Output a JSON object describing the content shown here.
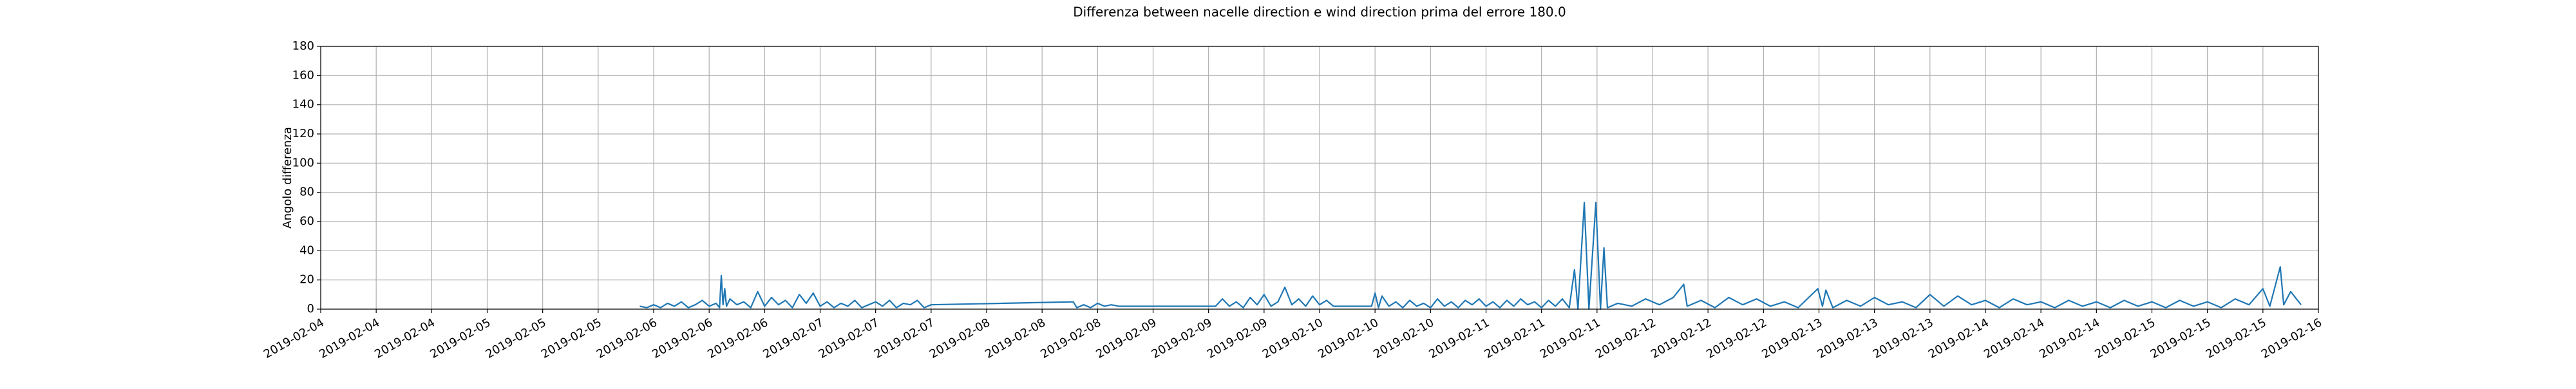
{
  "chart_data": {
    "type": "line",
    "title": "Differenza between nacelle direction e wind direction prima del errore 180.0",
    "y_label": "Angolo differenza",
    "grid": true,
    "xlim": [
      "2019-02-04T00:00",
      "2019-02-16T00:00"
    ],
    "xticks": [
      {
        "value": "2019-02-04T00:00",
        "label": "2019-02-04"
      },
      {
        "value": "2019-02-04T08:00",
        "label": "2019-02-04"
      },
      {
        "value": "2019-02-04T16:00",
        "label": "2019-02-04"
      },
      {
        "value": "2019-02-05T00:00",
        "label": "2019-02-05"
      },
      {
        "value": "2019-02-05T08:00",
        "label": "2019-02-05"
      },
      {
        "value": "2019-02-05T16:00",
        "label": "2019-02-05"
      },
      {
        "value": "2019-02-06T00:00",
        "label": "2019-02-06"
      },
      {
        "value": "2019-02-06T08:00",
        "label": "2019-02-06"
      },
      {
        "value": "2019-02-06T16:00",
        "label": "2019-02-06"
      },
      {
        "value": "2019-02-07T00:00",
        "label": "2019-02-07"
      },
      {
        "value": "2019-02-07T08:00",
        "label": "2019-02-07"
      },
      {
        "value": "2019-02-07T16:00",
        "label": "2019-02-07"
      },
      {
        "value": "2019-02-08T00:00",
        "label": "2019-02-08"
      },
      {
        "value": "2019-02-08T08:00",
        "label": "2019-02-08"
      },
      {
        "value": "2019-02-08T16:00",
        "label": "2019-02-08"
      },
      {
        "value": "2019-02-09T00:00",
        "label": "2019-02-09"
      },
      {
        "value": "2019-02-09T08:00",
        "label": "2019-02-09"
      },
      {
        "value": "2019-02-09T16:00",
        "label": "2019-02-09"
      },
      {
        "value": "2019-02-10T00:00",
        "label": "2019-02-10"
      },
      {
        "value": "2019-02-10T08:00",
        "label": "2019-02-10"
      },
      {
        "value": "2019-02-10T16:00",
        "label": "2019-02-10"
      },
      {
        "value": "2019-02-11T00:00",
        "label": "2019-02-11"
      },
      {
        "value": "2019-02-11T08:00",
        "label": "2019-02-11"
      },
      {
        "value": "2019-02-11T16:00",
        "label": "2019-02-11"
      },
      {
        "value": "2019-02-12T00:00",
        "label": "2019-02-12"
      },
      {
        "value": "2019-02-12T08:00",
        "label": "2019-02-12"
      },
      {
        "value": "2019-02-12T16:00",
        "label": "2019-02-12"
      },
      {
        "value": "2019-02-13T00:00",
        "label": "2019-02-13"
      },
      {
        "value": "2019-02-13T08:00",
        "label": "2019-02-13"
      },
      {
        "value": "2019-02-13T16:00",
        "label": "2019-02-13"
      },
      {
        "value": "2019-02-14T00:00",
        "label": "2019-02-14"
      },
      {
        "value": "2019-02-14T08:00",
        "label": "2019-02-14"
      },
      {
        "value": "2019-02-14T16:00",
        "label": "2019-02-14"
      },
      {
        "value": "2019-02-15T00:00",
        "label": "2019-02-15"
      },
      {
        "value": "2019-02-15T08:00",
        "label": "2019-02-15"
      },
      {
        "value": "2019-02-15T16:00",
        "label": "2019-02-15"
      },
      {
        "value": "2019-02-16T00:00",
        "label": "2019-02-16"
      }
    ],
    "ylim": [
      0,
      180
    ],
    "yticks": [
      0,
      20,
      40,
      60,
      80,
      100,
      120,
      140,
      160,
      180
    ],
    "x": [
      "2019-02-05T22:00",
      "2019-02-05T23:00",
      "2019-02-06T00:00",
      "2019-02-06T01:00",
      "2019-02-06T02:00",
      "2019-02-06T03:00",
      "2019-02-06T04:00",
      "2019-02-06T05:00",
      "2019-02-06T06:00",
      "2019-02-06T07:00",
      "2019-02-06T08:00",
      "2019-02-06T09:00",
      "2019-02-06T09:30",
      "2019-02-06T09:45",
      "2019-02-06T10:00",
      "2019-02-06T10:15",
      "2019-02-06T10:30",
      "2019-02-06T11:00",
      "2019-02-06T12:00",
      "2019-02-06T13:00",
      "2019-02-06T14:00",
      "2019-02-06T15:00",
      "2019-02-06T16:00",
      "2019-02-06T17:00",
      "2019-02-06T18:00",
      "2019-02-06T19:00",
      "2019-02-06T20:00",
      "2019-02-06T21:00",
      "2019-02-06T22:00",
      "2019-02-06T23:00",
      "2019-02-07T00:00",
      "2019-02-07T01:00",
      "2019-02-07T02:00",
      "2019-02-07T03:00",
      "2019-02-07T04:00",
      "2019-02-07T05:00",
      "2019-02-07T06:00",
      "2019-02-07T07:00",
      "2019-02-07T08:00",
      "2019-02-07T09:00",
      "2019-02-07T10:00",
      "2019-02-07T11:00",
      "2019-02-07T12:00",
      "2019-02-07T13:00",
      "2019-02-07T14:00",
      "2019-02-07T15:00",
      "2019-02-07T16:00",
      "2019-02-08T12:30",
      "2019-02-08T13:00",
      "2019-02-08T14:00",
      "2019-02-08T15:00",
      "2019-02-08T16:00",
      "2019-02-08T17:00",
      "2019-02-08T18:00",
      "2019-02-08T19:00",
      "2019-02-09T09:00",
      "2019-02-09T10:00",
      "2019-02-09T11:00",
      "2019-02-09T12:00",
      "2019-02-09T13:00",
      "2019-02-09T14:00",
      "2019-02-09T15:00",
      "2019-02-09T16:00",
      "2019-02-09T17:00",
      "2019-02-09T18:00",
      "2019-02-09T19:00",
      "2019-02-09T20:00",
      "2019-02-09T21:00",
      "2019-02-09T22:00",
      "2019-02-09T23:00",
      "2019-02-10T00:00",
      "2019-02-10T01:00",
      "2019-02-10T02:00",
      "2019-02-10T07:30",
      "2019-02-10T08:00",
      "2019-02-10T08:30",
      "2019-02-10T09:00",
      "2019-02-10T10:00",
      "2019-02-10T11:00",
      "2019-02-10T12:00",
      "2019-02-10T13:00",
      "2019-02-10T14:00",
      "2019-02-10T15:00",
      "2019-02-10T16:00",
      "2019-02-10T17:00",
      "2019-02-10T18:00",
      "2019-02-10T19:00",
      "2019-02-10T20:00",
      "2019-02-10T21:00",
      "2019-02-10T22:00",
      "2019-02-10T23:00",
      "2019-02-11T00:00",
      "2019-02-11T01:00",
      "2019-02-11T02:00",
      "2019-02-11T03:00",
      "2019-02-11T04:00",
      "2019-02-11T05:00",
      "2019-02-11T06:00",
      "2019-02-11T07:00",
      "2019-02-11T08:00",
      "2019-02-11T09:00",
      "2019-02-11T10:00",
      "2019-02-11T11:00",
      "2019-02-11T12:00",
      "2019-02-11T12:45",
      "2019-02-11T13:15",
      "2019-02-11T14:10",
      "2019-02-11T14:50",
      "2019-02-11T15:50",
      "2019-02-11T16:30",
      "2019-02-11T17:00",
      "2019-02-11T17:30",
      "2019-02-11T19:00",
      "2019-02-11T21:00",
      "2019-02-11T23:00",
      "2019-02-12T01:00",
      "2019-02-12T03:00",
      "2019-02-12T04:30",
      "2019-02-12T05:00",
      "2019-02-12T07:00",
      "2019-02-12T09:00",
      "2019-02-12T11:00",
      "2019-02-12T13:00",
      "2019-02-12T15:00",
      "2019-02-12T17:00",
      "2019-02-12T19:00",
      "2019-02-12T21:00",
      "2019-02-12T23:50",
      "2019-02-13T00:30",
      "2019-02-13T01:00",
      "2019-02-13T02:00",
      "2019-02-13T04:00",
      "2019-02-13T06:00",
      "2019-02-13T08:00",
      "2019-02-13T10:00",
      "2019-02-13T12:00",
      "2019-02-13T14:00",
      "2019-02-13T16:00",
      "2019-02-13T18:00",
      "2019-02-13T20:00",
      "2019-02-13T22:00",
      "2019-02-14T00:00",
      "2019-02-14T02:00",
      "2019-02-14T04:00",
      "2019-02-14T06:00",
      "2019-02-14T08:00",
      "2019-02-14T10:00",
      "2019-02-14T12:00",
      "2019-02-14T14:00",
      "2019-02-14T16:00",
      "2019-02-14T18:00",
      "2019-02-14T20:00",
      "2019-02-14T22:00",
      "2019-02-15T00:00",
      "2019-02-15T02:00",
      "2019-02-15T04:00",
      "2019-02-15T06:00",
      "2019-02-15T08:00",
      "2019-02-15T10:00",
      "2019-02-15T12:00",
      "2019-02-15T14:00",
      "2019-02-15T16:00",
      "2019-02-15T17:00",
      "2019-02-15T18:30",
      "2019-02-15T19:00",
      "2019-02-15T20:00",
      "2019-02-15T21:30"
    ],
    "series": [
      {
        "color": "#1f77b4",
        "values": [
          2,
          1,
          3,
          1,
          4,
          2,
          5,
          1,
          3,
          6,
          2,
          4,
          1,
          23,
          3,
          14,
          2,
          7,
          3,
          5,
          1,
          12,
          2,
          8,
          3,
          6,
          1,
          10,
          4,
          11,
          2,
          5,
          1,
          4,
          2,
          6,
          1,
          3,
          5,
          2,
          6,
          1,
          4,
          3,
          6,
          1,
          3,
          5,
          1,
          3,
          1,
          4,
          2,
          3,
          2,
          2,
          7,
          2,
          5,
          1,
          8,
          3,
          10,
          2,
          5,
          15,
          3,
          7,
          2,
          9,
          3,
          6,
          2,
          2,
          11,
          1,
          9,
          2,
          5,
          1,
          6,
          2,
          4,
          1,
          7,
          2,
          5,
          1,
          6,
          3,
          7,
          2,
          5,
          1,
          6,
          2,
          7,
          3,
          5,
          1,
          6,
          2,
          7,
          1,
          27,
          0,
          73,
          0,
          73,
          0,
          42,
          1,
          4,
          2,
          7,
          3,
          8,
          17,
          2,
          6,
          1,
          8,
          3,
          7,
          2,
          5,
          1,
          14,
          2,
          13,
          1,
          6,
          2,
          8,
          3,
          5,
          1,
          10,
          2,
          9,
          3,
          6,
          1,
          7,
          3,
          5,
          1,
          6,
          2,
          5,
          1,
          6,
          2,
          5,
          1,
          6,
          2,
          5,
          1,
          7,
          3,
          14,
          2,
          29,
          3,
          12,
          3
        ]
      }
    ]
  }
}
